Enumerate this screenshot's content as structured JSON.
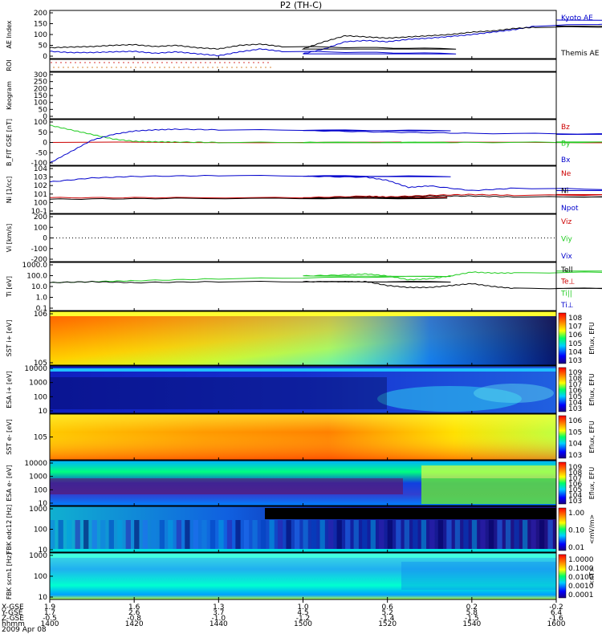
{
  "title": "P2 (TH-C)",
  "colors": {
    "blue": "#0000cc",
    "green": "#22cc22",
    "red": "#cc0000",
    "black": "#000000"
  },
  "chart_data": [
    {
      "type": "line",
      "panel": "ae",
      "ylabel": "AE Index",
      "ylim": [
        0,
        200
      ],
      "yticks": [
        "200",
        "150",
        "100",
        "50",
        "0"
      ],
      "legend": [
        "Kyoto AE",
        "Themis AE"
      ],
      "series": [
        {
          "name": "Kyoto AE",
          "color": "#0000cc",
          "x": [
            1400,
            1405,
            1410,
            1415,
            1420,
            1425,
            1430,
            1435,
            1440,
            1445,
            1450,
            1455,
            1500,
            1505,
            1510,
            1515,
            1520,
            1525,
            1530,
            1535,
            1540,
            1545,
            1550,
            1555,
            1600
          ],
          "values": [
            30,
            25,
            25,
            28,
            30,
            22,
            28,
            20,
            12,
            28,
            40,
            30,
            20,
            40,
            70,
            75,
            70,
            80,
            85,
            92,
            100,
            110,
            120,
            135,
            160
          ]
        },
        {
          "name": "Themis AE",
          "color": "#000000",
          "x": [
            1400,
            1405,
            1410,
            1415,
            1420,
            1425,
            1430,
            1435,
            1440,
            1445,
            1450,
            1455,
            1500,
            1505,
            1510,
            1515,
            1520,
            1525,
            1530,
            1535,
            1540,
            1545,
            1550,
            1555,
            1600
          ],
          "values": [
            45,
            48,
            50,
            55,
            58,
            50,
            55,
            45,
            40,
            55,
            60,
            50,
            40,
            70,
            95,
            90,
            85,
            90,
            95,
            100,
            110,
            115,
            125,
            130,
            135
          ]
        }
      ]
    },
    {
      "type": "heatmap",
      "panel": "roi",
      "ylabel": "ROI"
    },
    {
      "type": "heatmap",
      "panel": "keogram",
      "ylabel": "Keogram",
      "yticks": [
        "300",
        "250",
        "200",
        "150",
        "100",
        "50",
        "0"
      ]
    },
    {
      "type": "line",
      "panel": "bfit",
      "ylabel": "B_FIT GSE [nT]",
      "ylim": [
        -100,
        100
      ],
      "yticks": [
        "100",
        "50",
        "0",
        "-50",
        "-100"
      ],
      "legend": [
        "Bz",
        "By",
        "Bx"
      ],
      "series": [
        {
          "name": "Bz",
          "color": "#cc0000",
          "x": [
            1400,
            1600
          ],
          "values": [
            0,
            0
          ]
        },
        {
          "name": "By",
          "color": "#22cc22",
          "x": [
            1400,
            1405,
            1410,
            1415,
            1420,
            1425,
            1430,
            1440,
            1500,
            1520,
            1540,
            1600
          ],
          "values": [
            75,
            55,
            35,
            15,
            5,
            3,
            2,
            0,
            0,
            0,
            0,
            2
          ]
        },
        {
          "name": "Bx",
          "color": "#0000cc",
          "x": [
            1400,
            1405,
            1410,
            1415,
            1420,
            1425,
            1430,
            1440,
            1500,
            1520,
            1540,
            1600
          ],
          "values": [
            -90,
            -40,
            10,
            35,
            50,
            55,
            58,
            55,
            52,
            45,
            40,
            35
          ]
        }
      ]
    },
    {
      "type": "line",
      "panel": "ni",
      "ylabel": "Ni [1/cc]",
      "ylim_log": [
        -2,
        4
      ],
      "yticks": [
        "10^4",
        "10^3",
        "10^2",
        "10^1",
        "10^0",
        "10^-1"
      ],
      "legend": [
        "Ne",
        "Ni",
        "Npot"
      ],
      "series": [
        {
          "name": "Ni",
          "color": "#0000cc",
          "x": [
            1400,
            1410,
            1420,
            1440,
            1500,
            1515,
            1520,
            1525,
            1530,
            1540,
            1550,
            1600
          ],
          "values": [
            2.0,
            2.5,
            2.7,
            2.8,
            2.7,
            2.6,
            2.2,
            1.3,
            1.5,
            0.9,
            1.2,
            0.9
          ]
        },
        {
          "name": "Ne",
          "color": "#cc0000",
          "x": [
            1400,
            1430,
            1500,
            1515,
            1520,
            1530,
            1540,
            1550,
            1600
          ],
          "values": [
            0.0,
            0.0,
            0.0,
            0.2,
            0.1,
            0.3,
            0.4,
            0.3,
            0.4
          ]
        },
        {
          "name": "Npot",
          "color": "#000000",
          "x": [
            1400,
            1430,
            1500,
            1515,
            1520,
            1530,
            1540,
            1550,
            1600
          ],
          "values": [
            -0.2,
            -0.1,
            -0.1,
            0.1,
            0.0,
            0.2,
            0.2,
            0.1,
            0.1
          ]
        }
      ]
    },
    {
      "type": "line",
      "panel": "vi",
      "ylabel": "Vi [km/s]",
      "ylim": [
        -200,
        200
      ],
      "yticks": [
        "200",
        "100",
        "0",
        "-100",
        "-200"
      ],
      "legend": [
        "Viz",
        "Viy",
        "Vix"
      ]
    },
    {
      "type": "line",
      "panel": "ti",
      "ylabel": "Ti [eV]",
      "ylim_log": [
        -1,
        4
      ],
      "yticks": [
        "1000.0",
        "100.0",
        "10.0",
        "1.0",
        "0.1"
      ],
      "legend": [
        "Tell",
        "Te⊥",
        "Ti||",
        "Ti⊥"
      ],
      "series": [
        {
          "name": "Ti||",
          "color": "#22cc22",
          "x": [
            1400,
            1410,
            1420,
            1440,
            1500,
            1510,
            1515,
            1520,
            1525,
            1530,
            1535,
            1540,
            1545,
            1550,
            1600
          ],
          "values": [
            1.9,
            2.0,
            2.1,
            2.3,
            2.6,
            2.7,
            2.8,
            2.6,
            2.2,
            2.3,
            2.6,
            3.0,
            2.9,
            2.9,
            3.1
          ]
        },
        {
          "name": "Te⊥",
          "color": "#000000",
          "x": [
            1400,
            1410,
            1420,
            1440,
            1500,
            1510,
            1515,
            1520,
            1525,
            1530,
            1535,
            1540,
            1545,
            1550,
            1600
          ],
          "values": [
            1.9,
            2.0,
            1.9,
            2.0,
            2.0,
            2.0,
            2.0,
            1.6,
            1.4,
            1.4,
            1.6,
            1.8,
            1.5,
            1.3,
            1.3
          ]
        }
      ]
    },
    {
      "type": "heatmap",
      "panel": "sst1",
      "ylabel": "SST i+ [eV]",
      "yticks": [
        "10^6",
        "10^5"
      ],
      "colorbar_label": "Eflux, EFU",
      "colorbar_ticks": [
        "10^8",
        "10^7",
        "10^6",
        "10^5",
        "10^4",
        "10^3"
      ]
    },
    {
      "type": "heatmap",
      "panel": "esa1",
      "ylabel": "ESA i+ [eV]",
      "yticks": [
        "10000",
        "1000",
        "100",
        "10"
      ],
      "colorbar_label": "Eflux, EFU",
      "colorbar_ticks": [
        "10^9",
        "10^8",
        "10^7",
        "10^6",
        "10^5",
        "10^4",
        "10^3"
      ]
    },
    {
      "type": "heatmap",
      "panel": "sst2",
      "ylabel": "SST e- [eV]",
      "yticks": [
        "10^5"
      ],
      "colorbar_label": "Eflux, EFU",
      "colorbar_ticks": [
        "10^6",
        "10^5",
        "10^4",
        "10^3"
      ]
    },
    {
      "type": "heatmap",
      "panel": "esa2",
      "ylabel": "ESA e- [eV]",
      "yticks": [
        "10000",
        "1000",
        "100",
        "10"
      ],
      "colorbar_label": "Eflux, EFU",
      "colorbar_ticks": [
        "10^9",
        "10^8",
        "10^7",
        "10^6",
        "10^5",
        "10^4",
        "10^3"
      ]
    },
    {
      "type": "heatmap",
      "panel": "fbk1",
      "ylabel": "FBK edc12 [Hz]",
      "yticks": [
        "1000",
        "100",
        "10"
      ],
      "colorbar_label": "<mV/m>",
      "colorbar_ticks": [
        "1.00",
        "0.10",
        "0.01"
      ]
    },
    {
      "type": "heatmap",
      "panel": "fbk2",
      "ylabel": "FBK scm1 [Hz]",
      "yticks": [
        "1000",
        "100",
        "10"
      ],
      "colorbar_label": "<nT>",
      "colorbar_ticks": [
        "1.0000",
        "0.1000",
        "0.0100",
        "0.0010",
        "0.0001"
      ]
    }
  ],
  "xaxis": {
    "row_labels": [
      "X-GSE",
      "Y-GSE",
      "Z-GSE",
      "hhmm",
      "2009 Apr 08"
    ],
    "columns": [
      [
        "1.9",
        "1.7",
        "-0.5",
        "1400"
      ],
      [
        "1.6",
        "2.6",
        "-0.8",
        "1420"
      ],
      [
        "1.3",
        "3.7",
        "-1.0",
        "1440"
      ],
      [
        "1.0",
        "4.5",
        "-1.2",
        "1500"
      ],
      [
        "0.6",
        "5.2",
        "-1.4",
        "1520"
      ],
      [
        "0.2",
        "5.8",
        "-1.5",
        "1540"
      ],
      [
        "-0.2",
        "6.4",
        "-1.6",
        "1600"
      ]
    ]
  }
}
